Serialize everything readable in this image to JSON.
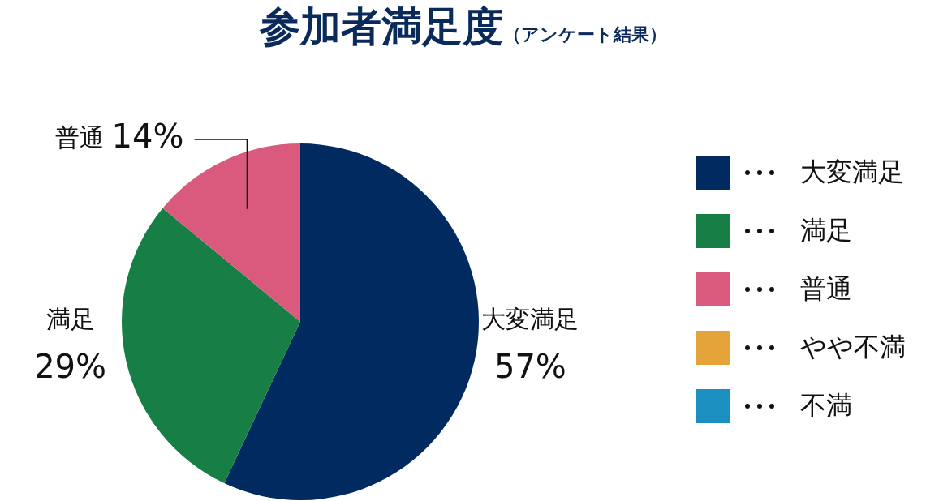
{
  "chart_data": {
    "type": "pie",
    "title": "参加者満足度",
    "subtitle": "（アンケート結果）",
    "categories": [
      "大変満足",
      "満足",
      "普通",
      "やや不満",
      "不満"
    ],
    "values": [
      57,
      29,
      14,
      0,
      0
    ],
    "colors": [
      "#012a61",
      "#177f45",
      "#d95a7c",
      "#e5a43a",
      "#1a8fc0"
    ],
    "value_labels": [
      "57%",
      "29%",
      "14%",
      null,
      null
    ],
    "legend": "right"
  }
}
